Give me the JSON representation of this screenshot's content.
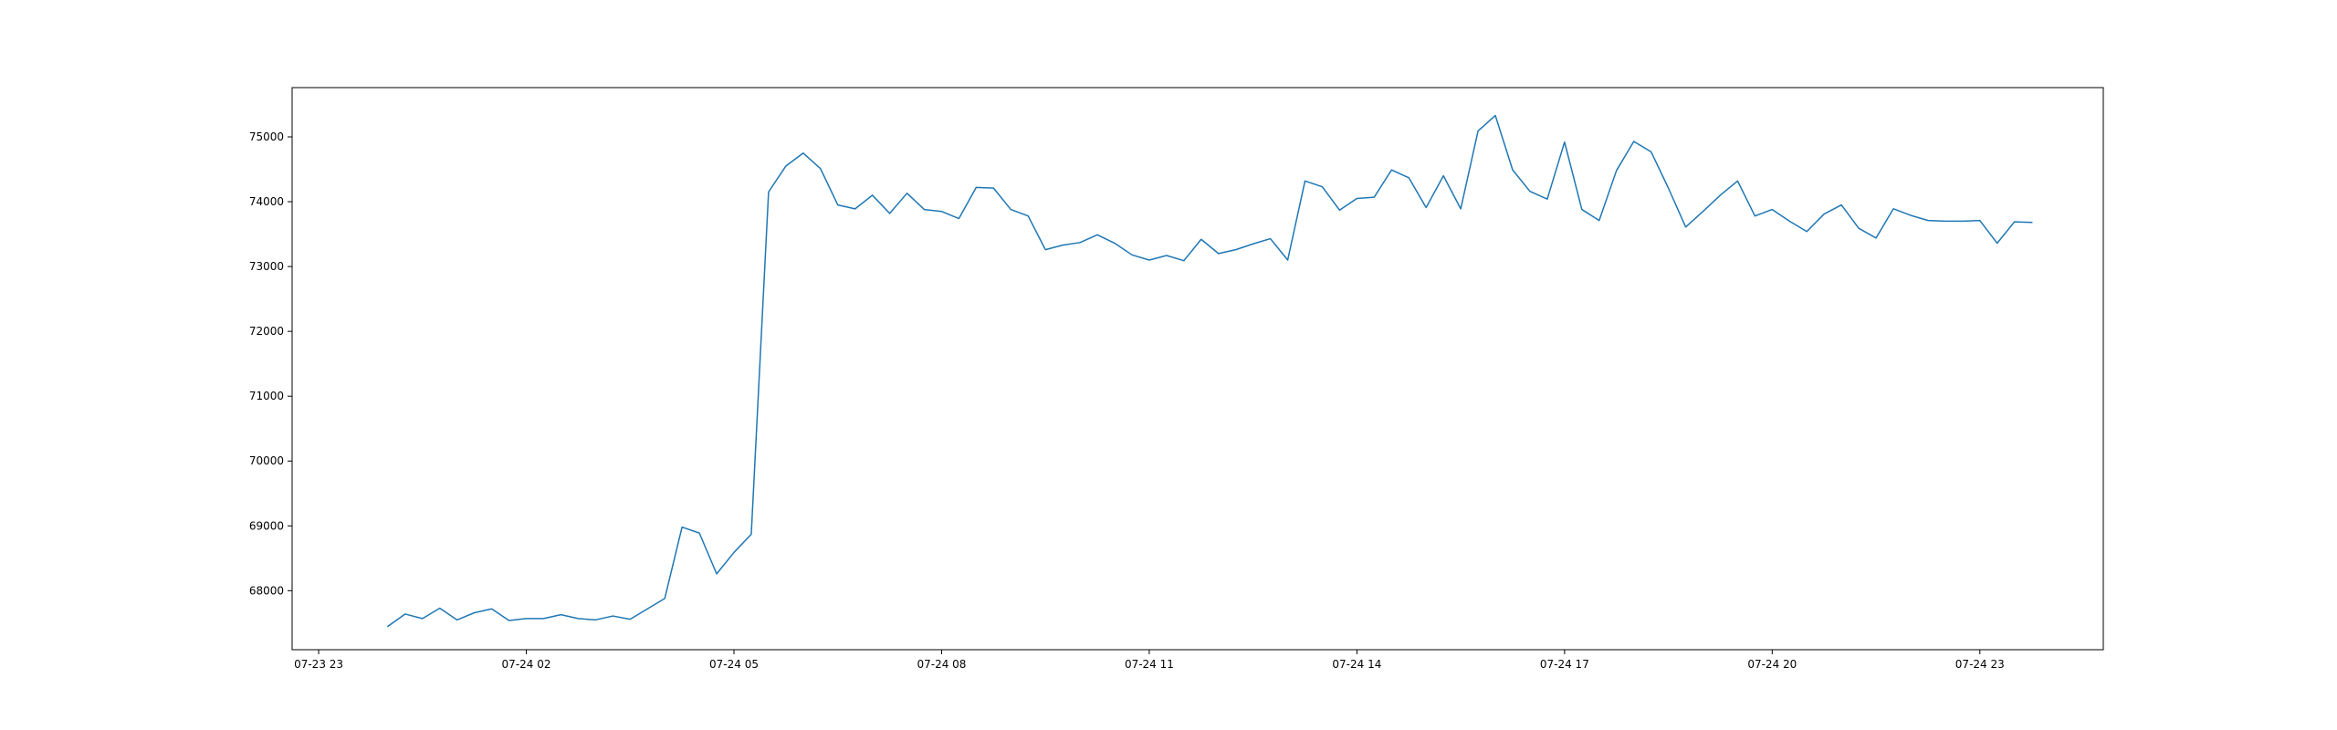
{
  "chart_data": {
    "type": "line",
    "title": "",
    "xlabel": "",
    "ylabel": "",
    "grid": false,
    "legend": "none",
    "line_color": "#1f77b4",
    "x_ticks": [
      "07-23 23",
      "07-24 02",
      "07-24 05",
      "07-24 08",
      "07-24 11",
      "07-24 14",
      "07-24 17",
      "07-24 20",
      "07-24 23"
    ],
    "y_ticks": [
      "68000",
      "69000",
      "70000",
      "71000",
      "72000",
      "73000",
      "74000",
      "75000"
    ],
    "xlim": [
      "07-23 22:37",
      "07-25 00:47"
    ],
    "ylim": [
      67090,
      75760
    ],
    "x_start": "07-24 00:00",
    "x_step_minutes": 15,
    "series": [
      {
        "values": [
          67450,
          67640,
          67570,
          67730,
          67550,
          67660,
          67720,
          67540,
          67570,
          67570,
          67630,
          67570,
          67550,
          67610,
          67560,
          67720,
          67880,
          68980,
          68890,
          68260,
          68590,
          68870,
          74150,
          74550,
          74750,
          74510,
          73950,
          73890,
          74100,
          73820,
          74130,
          73880,
          73850,
          73740,
          74220,
          74210,
          73880,
          73780,
          73260,
          73330,
          73370,
          73490,
          73360,
          73180,
          73100,
          73170,
          73090,
          73420,
          73200,
          73260,
          73350,
          73430,
          73100,
          74320,
          74230,
          73870,
          74050,
          74070,
          74490,
          74370,
          73910,
          74400,
          73890,
          75090,
          75330,
          74490,
          74160,
          74040,
          74920,
          73880,
          73710,
          74480,
          74930,
          74770,
          74210,
          73610,
          73850,
          74100,
          74320,
          73780,
          73880,
          73700,
          73540,
          73810,
          73950,
          73590,
          73440,
          73890,
          73790,
          73710,
          73700,
          73700,
          73710,
          73360,
          73690,
          73680
        ]
      }
    ]
  }
}
